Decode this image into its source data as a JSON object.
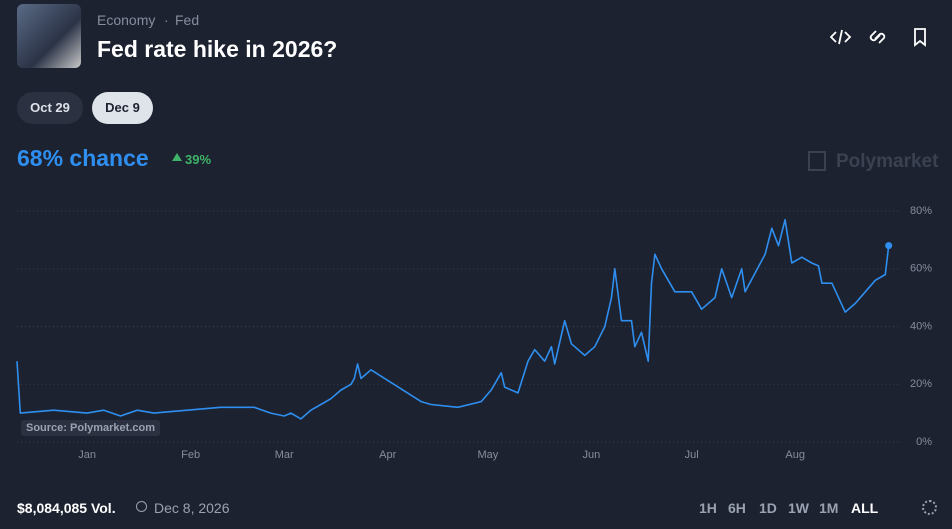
{
  "header": {
    "category": "Economy",
    "subcategory": "Fed",
    "title": "Fed rate hike in 2026?"
  },
  "tabs": [
    "Oct 29",
    "Dec 9"
  ],
  "chance": "68% chance",
  "change": "39%",
  "watermark": "Polymarket",
  "source": "Source: Polymarket.com",
  "footer": {
    "volume": "$8,084,085 Vol.",
    "date": "Dec 8, 2026",
    "ranges": [
      "1H",
      "6H",
      "1D",
      "1W",
      "1M",
      "ALL"
    ]
  },
  "chart_data": {
    "type": "line",
    "color": "#2e8ff0",
    "grid": true,
    "xlim": [
      -21,
      241
    ],
    "ylim": [
      0,
      80
    ],
    "xticks": [
      {
        "value": 0,
        "label": "Jan"
      },
      {
        "value": 31,
        "label": "Feb"
      },
      {
        "value": 59,
        "label": "Mar"
      },
      {
        "value": 90,
        "label": "Apr"
      },
      {
        "value": 120,
        "label": "May"
      },
      {
        "value": 151,
        "label": "Jun"
      },
      {
        "value": 181,
        "label": "Jul"
      },
      {
        "value": 212,
        "label": "Aug"
      }
    ],
    "yticks": [
      {
        "value": 0,
        "label": "0%"
      },
      {
        "value": 20,
        "label": "20%"
      },
      {
        "value": 40,
        "label": "40%"
      },
      {
        "value": 60,
        "label": "60%"
      },
      {
        "value": 80,
        "label": "80%"
      }
    ],
    "x": [
      -21,
      -20,
      -10,
      0,
      5,
      10,
      15,
      20,
      30,
      40,
      50,
      55,
      59,
      61,
      64,
      67,
      70,
      73,
      76,
      79,
      80,
      81,
      82,
      85,
      100,
      103,
      111,
      118,
      121,
      124,
      125,
      129,
      132,
      134,
      137,
      139,
      140,
      143,
      145,
      149,
      152,
      155,
      157,
      158,
      160,
      163,
      164,
      166,
      168,
      169,
      170,
      172,
      176,
      181,
      184,
      188,
      190,
      193,
      196,
      197,
      203,
      205,
      207,
      209,
      211,
      214,
      217,
      219,
      220,
      223,
      227,
      230,
      233,
      236,
      239,
      240
    ],
    "values": [
      28,
      10,
      11,
      10,
      11,
      9,
      11,
      10,
      11,
      12,
      12,
      10,
      9,
      10,
      8,
      11,
      13,
      15,
      18,
      20,
      22,
      27,
      22,
      25,
      14,
      13,
      12,
      14,
      18,
      24,
      19,
      17,
      28,
      32,
      28,
      33,
      27,
      42,
      34,
      30,
      33,
      40,
      50,
      60,
      42,
      42,
      33,
      38,
      28,
      55,
      65,
      60,
      52,
      52,
      46,
      50,
      60,
      50,
      60,
      52,
      65,
      74,
      68,
      77,
      62,
      64,
      62,
      61,
      55,
      55,
      45,
      48,
      52,
      56,
      58,
      68
    ]
  }
}
